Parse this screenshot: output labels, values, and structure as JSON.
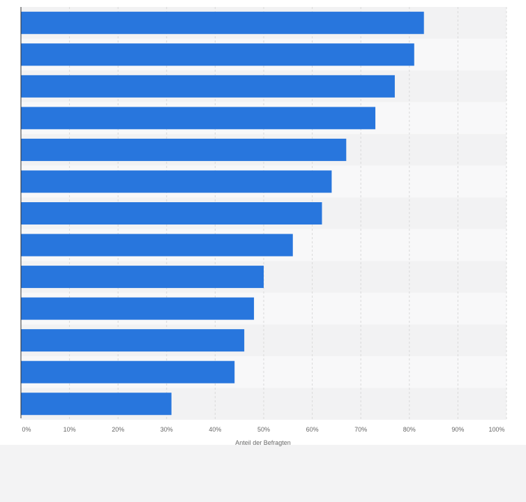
{
  "chart_data": {
    "type": "bar",
    "orientation": "horizontal",
    "categories": [
      "",
      "",
      "",
      "",
      "",
      "",
      "",
      "",
      "",
      "",
      "",
      "",
      ""
    ],
    "values": [
      83,
      81,
      77,
      73,
      67,
      64,
      62,
      56,
      50,
      48,
      46,
      44,
      31
    ],
    "title": "",
    "xlabel": "Anteil der Befragten",
    "ylabel": "",
    "xlim": [
      0,
      100
    ],
    "x_ticks": [
      "0%",
      "10%",
      "20%",
      "30%",
      "40%",
      "50%",
      "60%",
      "70%",
      "80%",
      "90%",
      "100%"
    ],
    "grid": true,
    "colors": {
      "bar": "#2876dd",
      "band_dark": "#f2f2f3",
      "band_light": "#f8f8f9",
      "grid": "#d9d9d9",
      "axis": "#333333",
      "footer": "#f3f3f4"
    }
  }
}
